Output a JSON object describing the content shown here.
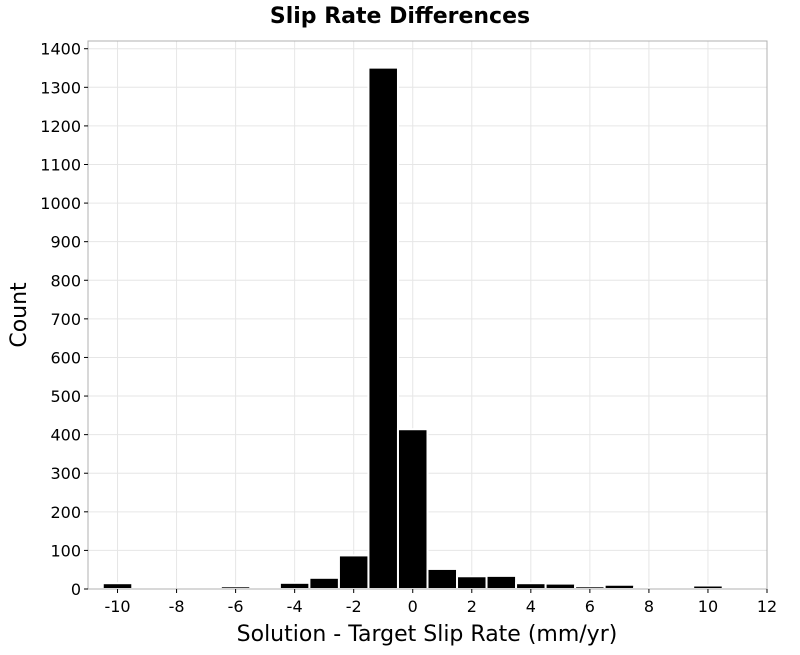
{
  "chart_data": {
    "type": "bar",
    "title": "Slip Rate Differences",
    "xlabel": "Solution - Target Slip Rate (mm/yr)",
    "ylabel": "Count",
    "xlim": [
      -11,
      12
    ],
    "ylim": [
      0,
      1420
    ],
    "xticks": [
      -10,
      -8,
      -6,
      -4,
      -2,
      0,
      2,
      4,
      6,
      8,
      10,
      12
    ],
    "yticks": [
      0,
      100,
      200,
      300,
      400,
      500,
      600,
      700,
      800,
      900,
      1000,
      1100,
      1200,
      1300,
      1400
    ],
    "bin_width": 1,
    "grid": true,
    "bar_color": "#000000",
    "bins": [
      {
        "x": -10,
        "value": 15
      },
      {
        "x": -9,
        "value": 0
      },
      {
        "x": -8,
        "value": 0
      },
      {
        "x": -7,
        "value": 0
      },
      {
        "x": -6,
        "value": 7
      },
      {
        "x": -5,
        "value": 3
      },
      {
        "x": -4,
        "value": 16
      },
      {
        "x": -3,
        "value": 29
      },
      {
        "x": -2,
        "value": 87
      },
      {
        "x": -1,
        "value": 1351
      },
      {
        "x": 0,
        "value": 414
      },
      {
        "x": 1,
        "value": 52
      },
      {
        "x": 2,
        "value": 33
      },
      {
        "x": 3,
        "value": 34
      },
      {
        "x": 4,
        "value": 15
      },
      {
        "x": 5,
        "value": 14
      },
      {
        "x": 6,
        "value": 7
      },
      {
        "x": 7,
        "value": 11
      },
      {
        "x": 8,
        "value": 3
      },
      {
        "x": 9,
        "value": 0
      },
      {
        "x": 10,
        "value": 9
      }
    ]
  }
}
